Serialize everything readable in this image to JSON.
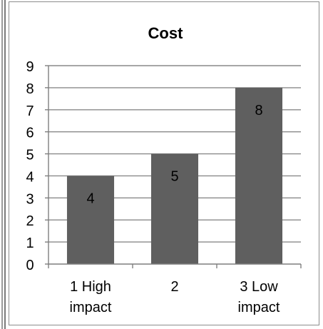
{
  "chart_data": {
    "type": "bar",
    "title": "Cost",
    "categories": [
      "1 High impact",
      "2",
      "3 Low impact"
    ],
    "category_lines": [
      [
        "1 High",
        "impact"
      ],
      [
        "2"
      ],
      [
        "3 Low",
        "impact"
      ]
    ],
    "values": [
      4,
      5,
      8
    ],
    "data_labels": [
      "4",
      "5",
      "8"
    ],
    "xlabel": "",
    "ylabel": "",
    "ylim": [
      0,
      9
    ],
    "yticks": [
      "0",
      "1",
      "2",
      "3",
      "4",
      "5",
      "6",
      "7",
      "8",
      "9"
    ],
    "grid": true,
    "legend": "none",
    "colors": {
      "bar": "#5f5f5f",
      "grid": "#8a8a8a",
      "axis": "#7f7f7f",
      "text": "#000000"
    }
  }
}
